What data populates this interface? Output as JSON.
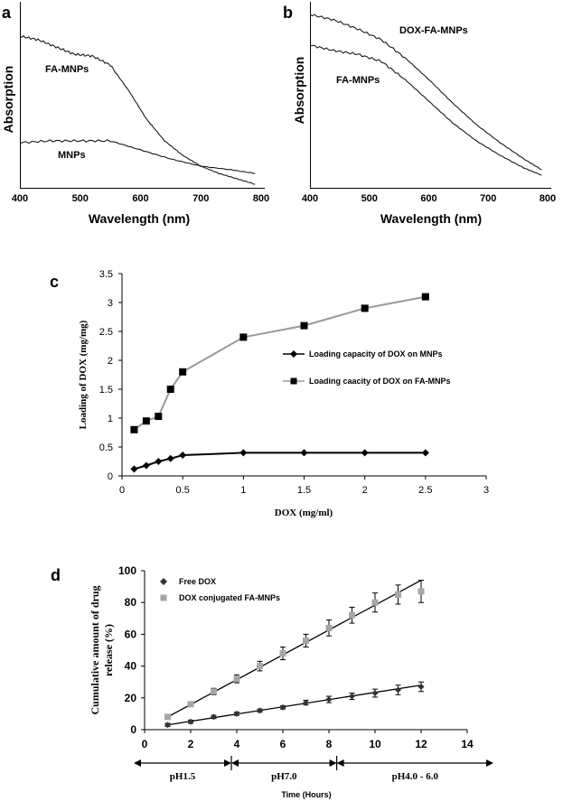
{
  "panels": {
    "a": {
      "letter": "a",
      "chart_data": {
        "type": "line",
        "xlabel": "Wavelength (nm)",
        "ylabel": "Absorption",
        "xlim": [
          400,
          800
        ],
        "ylim": [
          0,
          1
        ],
        "xticks": [
          "400",
          "500",
          "600",
          "700",
          "800"
        ],
        "grid": false,
        "series": [
          {
            "name": "FA-MNPs",
            "x": [
              400,
              430,
              460,
              490,
              520,
              550,
              580,
              610,
              640,
              670,
              700,
              730,
              760,
              790
            ],
            "y": [
              0.84,
              0.82,
              0.78,
              0.74,
              0.73,
              0.68,
              0.54,
              0.38,
              0.26,
              0.18,
              0.12,
              0.08,
              0.05,
              0.02
            ]
          },
          {
            "name": "MNPs",
            "x": [
              400,
              450,
              500,
              550,
              600,
              650,
              700,
              750,
              790
            ],
            "y": [
              0.25,
              0.26,
              0.26,
              0.26,
              0.21,
              0.16,
              0.12,
              0.1,
              0.08
            ]
          }
        ]
      }
    },
    "b": {
      "letter": "b",
      "chart_data": {
        "type": "line",
        "xlabel": "Wavelength (nm)",
        "ylabel": "Absorption",
        "xlim": [
          400,
          800
        ],
        "ylim": [
          0,
          1
        ],
        "xticks": [
          "400",
          "500",
          "600",
          "700",
          "800"
        ],
        "grid": false,
        "series": [
          {
            "name": "DOX-FA-MNPs",
            "x": [
              400,
              440,
              480,
              520,
              560,
              600,
              640,
              680,
              720,
              760,
              790
            ],
            "y": [
              0.96,
              0.93,
              0.88,
              0.82,
              0.72,
              0.6,
              0.47,
              0.35,
              0.25,
              0.16,
              0.1
            ]
          },
          {
            "name": "FA-MNPs",
            "x": [
              400,
              440,
              480,
              520,
              560,
              600,
              640,
              680,
              720,
              760,
              790
            ],
            "y": [
              0.79,
              0.76,
              0.74,
              0.7,
              0.6,
              0.48,
              0.36,
              0.26,
              0.18,
              0.11,
              0.07
            ]
          }
        ]
      }
    },
    "c": {
      "letter": "c",
      "chart_data": {
        "type": "line",
        "xlabel": "DOX (mg/ml)",
        "ylabel": "Loading of DOX (mg/mg)",
        "xlim": [
          0,
          3
        ],
        "ylim": [
          0,
          3.5
        ],
        "xticks": [
          "0",
          "0.5",
          "1",
          "1.5",
          "2",
          "2.5",
          "3"
        ],
        "yticks": [
          "0",
          "0.5",
          "1",
          "1.5",
          "2",
          "2.5",
          "3",
          "3.5"
        ],
        "grid": false,
        "legend": "right",
        "series": [
          {
            "name": "Loading capacity of DOX on MNPs",
            "color": "#000000",
            "marker": "diamond",
            "x": [
              0.1,
              0.2,
              0.3,
              0.4,
              0.5,
              1,
              1.5,
              2,
              2.5
            ],
            "y": [
              0.12,
              0.18,
              0.25,
              0.3,
              0.36,
              0.4,
              0.4,
              0.4,
              0.4
            ]
          },
          {
            "name": "Loading caacity of DOX on FA-MNPs",
            "color": "#9a9a9a",
            "marker": "square",
            "x": [
              0.1,
              0.2,
              0.3,
              0.4,
              0.5,
              1,
              1.5,
              2,
              2.5
            ],
            "y": [
              0.8,
              0.95,
              1.03,
              1.5,
              1.8,
              2.4,
              2.6,
              2.9,
              3.1
            ]
          }
        ]
      }
    },
    "d": {
      "letter": "d",
      "chart_data": {
        "type": "scatter",
        "xlabel": "Time (Hours)",
        "ylabel": "Cumulative amount of drug release (%)",
        "ylabel_lines": [
          "Cumulative amount of drug",
          "release (%)"
        ],
        "xlim": [
          0,
          14
        ],
        "ylim": [
          0,
          100
        ],
        "xticks": [
          "0",
          "2",
          "4",
          "6",
          "8",
          "10",
          "12",
          "14"
        ],
        "yticks": [
          "0",
          "20",
          "40",
          "60",
          "80",
          "100"
        ],
        "grid": false,
        "legend": "top-left",
        "series": [
          {
            "name": "Free DOX",
            "color": "#333333",
            "marker": "diamond",
            "x": [
              1,
              2,
              3,
              4,
              5,
              6,
              7,
              8,
              9,
              10,
              11,
              12
            ],
            "y": [
              3,
              5,
              8,
              10,
              12,
              14,
              17,
              19,
              21,
              23,
              25,
              27
            ],
            "err": [
              1,
              1,
              1,
              1,
              1,
              1,
              1.5,
              2,
              2,
              2.5,
              3,
              3
            ],
            "fit": [
              [
                1,
                3
              ],
              [
                12,
                28
              ]
            ]
          },
          {
            "name": "DOX conjugated FA-MNPs",
            "color": "#a6a6a6",
            "marker": "square",
            "x": [
              1,
              2,
              3,
              4,
              5,
              6,
              7,
              8,
              9,
              10,
              11,
              12
            ],
            "y": [
              8,
              16,
              24,
              32,
              40,
              48,
              56,
              64,
              72,
              80,
              85,
              87
            ],
            "err": [
              1,
              1.5,
              2,
              2.5,
              3,
              4,
              4,
              5,
              5,
              6,
              6,
              7
            ],
            "fit": [
              [
                1,
                8
              ],
              [
                12,
                94
              ]
            ]
          }
        ],
        "phases": [
          {
            "label": "pH1.5",
            "from": 0,
            "to": 3.8
          },
          {
            "label": "pH7.0",
            "from": 3.8,
            "to": 7.9
          },
          {
            "label": "pH4.0 - 6.0",
            "from": 7.9,
            "to": 14
          }
        ]
      }
    }
  }
}
